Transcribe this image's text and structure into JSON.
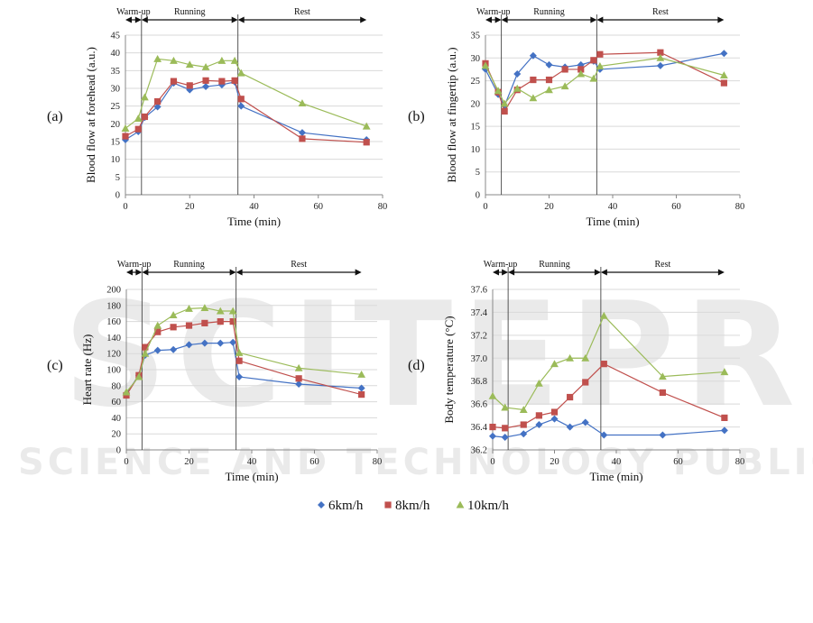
{
  "watermark": {
    "line1": "SCITEPRESS",
    "line2": "SCIENCE AND TECHNOLOGY PUBLICATIONS"
  },
  "legend": [
    {
      "label": "6km/h",
      "color": "#4472C4",
      "marker": "diamond"
    },
    {
      "label": "8km/h",
      "color": "#C0504D",
      "marker": "square"
    },
    {
      "label": "10km/h",
      "color": "#9BBB59",
      "marker": "triangle"
    }
  ],
  "chart_data": [
    {
      "type": "line",
      "panel_label": "(a)",
      "xlabel": "Time (min)",
      "ylabel": "Blood flow at forehead (a.u.)",
      "xlim": [
        0,
        80
      ],
      "xticks": [
        0,
        20,
        40,
        60,
        80
      ],
      "ylim": [
        0,
        45
      ],
      "yticks": [
        0,
        5,
        10,
        15,
        20,
        25,
        30,
        35,
        40,
        45
      ],
      "grid": true,
      "phases": [
        {
          "label": "Warm-up",
          "start": 0,
          "end": 5
        },
        {
          "label": "Running",
          "start": 5,
          "end": 35
        },
        {
          "label": "Rest",
          "start": 35,
          "end": 75
        }
      ],
      "series": [
        {
          "name": "6km/h",
          "x": [
            0,
            4,
            6,
            10,
            15,
            20,
            25,
            30,
            34,
            36,
            55,
            75
          ],
          "y": [
            15.5,
            17.8,
            21.8,
            24.8,
            31.5,
            29.6,
            30.5,
            31.0,
            31.8,
            25.0,
            17.5,
            15.5
          ]
        },
        {
          "name": "8km/h",
          "x": [
            0,
            4,
            6,
            10,
            15,
            20,
            25,
            30,
            34,
            36,
            55,
            75
          ],
          "y": [
            16.5,
            18.5,
            22.0,
            26.3,
            32.0,
            30.8,
            32.2,
            32.0,
            32.2,
            27.0,
            15.8,
            14.8
          ]
        },
        {
          "name": "10km/h",
          "x": [
            0,
            4,
            6,
            10,
            15,
            20,
            25,
            30,
            34,
            36,
            55,
            75
          ],
          "y": [
            18.7,
            21.5,
            27.5,
            38.3,
            37.8,
            36.7,
            36.0,
            37.8,
            37.8,
            34.3,
            25.8,
            19.3
          ]
        }
      ]
    },
    {
      "type": "line",
      "panel_label": "(b)",
      "xlabel": "Time (min)",
      "ylabel": "Blood flow at fingertip (a.u.)",
      "xlim": [
        0,
        80
      ],
      "xticks": [
        0,
        20,
        40,
        60,
        80
      ],
      "ylim": [
        0,
        35
      ],
      "yticks": [
        0,
        5,
        10,
        15,
        20,
        25,
        30,
        35
      ],
      "grid": true,
      "phases": [
        {
          "label": "Warm-up",
          "start": 0,
          "end": 5
        },
        {
          "label": "Running",
          "start": 5,
          "end": 35
        },
        {
          "label": "Rest",
          "start": 35,
          "end": 75
        }
      ],
      "series": [
        {
          "name": "6km/h",
          "x": [
            0,
            4,
            6,
            10,
            15,
            20,
            25,
            30,
            34,
            36,
            55,
            75
          ],
          "y": [
            27.5,
            22.0,
            19.5,
            26.5,
            30.5,
            28.5,
            28.0,
            28.5,
            29.3,
            27.5,
            28.3,
            31.0
          ]
        },
        {
          "name": "8km/h",
          "x": [
            0,
            4,
            6,
            10,
            15,
            20,
            25,
            30,
            34,
            36,
            55,
            75
          ],
          "y": [
            28.8,
            22.5,
            18.3,
            23.0,
            25.2,
            25.2,
            27.5,
            27.5,
            29.5,
            30.8,
            31.2,
            24.5
          ]
        },
        {
          "name": "10km/h",
          "x": [
            0,
            4,
            6,
            10,
            15,
            20,
            25,
            30,
            34,
            36,
            55,
            75
          ],
          "y": [
            28.3,
            22.8,
            20.0,
            23.3,
            21.2,
            23.0,
            23.8,
            26.5,
            25.5,
            28.2,
            30.0,
            26.2
          ]
        }
      ]
    },
    {
      "type": "line",
      "panel_label": "(c)",
      "xlabel": "Time (min)",
      "ylabel": "Heart rate (Hz)",
      "xlim": [
        0,
        80
      ],
      "xticks": [
        0,
        20,
        40,
        60,
        80
      ],
      "ylim": [
        0,
        200
      ],
      "yticks": [
        0,
        20,
        40,
        60,
        80,
        100,
        120,
        140,
        160,
        180,
        200
      ],
      "grid": true,
      "phases": [
        {
          "label": "Warm-up",
          "start": 0,
          "end": 5
        },
        {
          "label": "Running",
          "start": 5,
          "end": 35
        },
        {
          "label": "Rest",
          "start": 35,
          "end": 75
        }
      ],
      "series": [
        {
          "name": "6km/h",
          "x": [
            0,
            4,
            6,
            10,
            15,
            20,
            25,
            30,
            34,
            36,
            55,
            75
          ],
          "y": [
            70,
            93,
            118,
            124,
            125,
            131,
            133,
            133,
            134,
            91,
            82,
            77
          ]
        },
        {
          "name": "8km/h",
          "x": [
            0,
            4,
            6,
            10,
            15,
            20,
            25,
            30,
            34,
            36,
            55,
            75
          ],
          "y": [
            68,
            93,
            128,
            147,
            153,
            155,
            158,
            160,
            160,
            111,
            89,
            69
          ]
        },
        {
          "name": "10km/h",
          "x": [
            0,
            4,
            6,
            10,
            15,
            20,
            25,
            30,
            34,
            36,
            55,
            75
          ],
          "y": [
            72,
            91,
            120,
            155,
            168,
            176,
            177,
            173,
            173,
            121,
            102,
            94
          ]
        }
      ]
    },
    {
      "type": "line",
      "panel_label": "(d)",
      "xlabel": "Time (min)",
      "ylabel": "Body temperature (°C)",
      "xlim": [
        0,
        80
      ],
      "xticks": [
        0,
        20,
        40,
        60,
        80
      ],
      "ylim": [
        36.2,
        37.6
      ],
      "yticks": [
        36.2,
        36.4,
        36.6,
        36.8,
        37.0,
        37.2,
        37.4,
        37.6
      ],
      "ytick_labels": [
        "36.2",
        "36.4",
        "36.6",
        "36.8",
        "37.0",
        "37.2",
        "37.4",
        "37.6"
      ],
      "grid": true,
      "phases": [
        {
          "label": "Warm-up",
          "start": 0,
          "end": 5
        },
        {
          "label": "Running",
          "start": 5,
          "end": 35
        },
        {
          "label": "Rest",
          "start": 35,
          "end": 75
        }
      ],
      "series": [
        {
          "name": "6km/h",
          "x": [
            0,
            4,
            10,
            15,
            20,
            25,
            30,
            36,
            55,
            75
          ],
          "y": [
            36.32,
            36.31,
            36.34,
            36.42,
            36.47,
            36.4,
            36.44,
            36.33,
            36.33,
            36.37
          ]
        },
        {
          "name": "8km/h",
          "x": [
            0,
            4,
            10,
            15,
            20,
            25,
            30,
            36,
            55,
            75
          ],
          "y": [
            36.4,
            36.39,
            36.42,
            36.5,
            36.53,
            36.66,
            36.79,
            36.95,
            36.7,
            36.48
          ]
        },
        {
          "name": "10km/h",
          "x": [
            0,
            4,
            10,
            15,
            20,
            25,
            30,
            36,
            55,
            75
          ],
          "y": [
            36.67,
            36.57,
            36.55,
            36.78,
            36.95,
            37.0,
            37.0,
            37.37,
            36.84,
            36.88
          ]
        }
      ]
    }
  ]
}
